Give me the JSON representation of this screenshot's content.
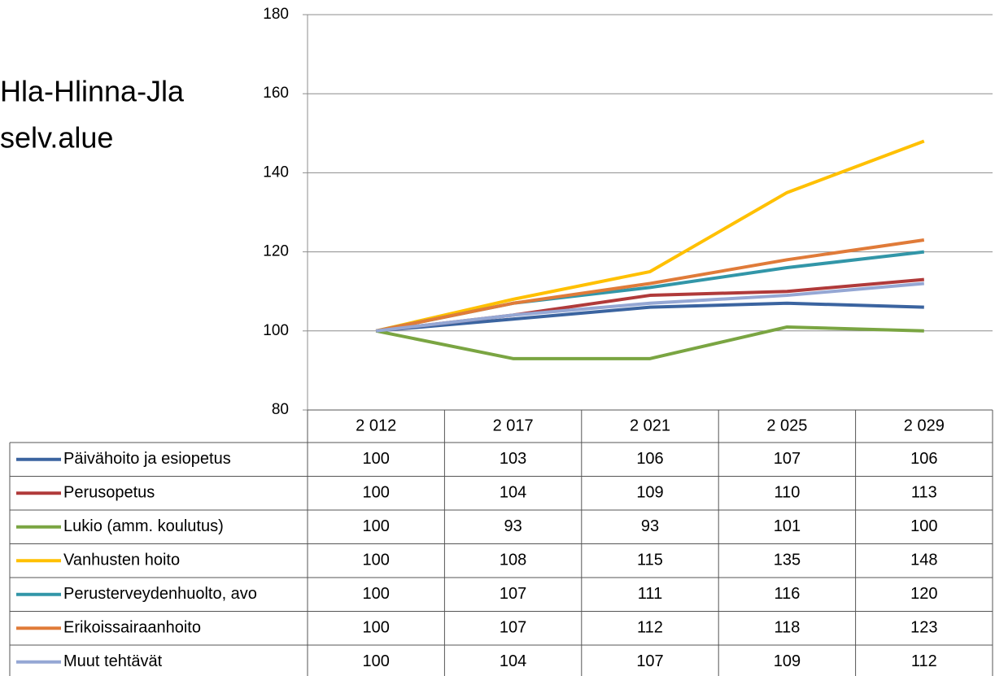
{
  "chart_data": {
    "type": "line",
    "title": [
      "Hla-Hlinna-Jla",
      "selv.alue"
    ],
    "categories": [
      "2 012",
      "2 017",
      "2 021",
      "2 025",
      "2 029"
    ],
    "ylim": [
      80,
      180
    ],
    "yticks": [
      80,
      100,
      120,
      140,
      160,
      180
    ],
    "grid": true,
    "series": [
      {
        "name": "Päivähoito ja esiopetus",
        "color": "#3b64a0",
        "values": [
          100,
          103,
          106,
          107,
          106
        ]
      },
      {
        "name": "Perusopetus",
        "color": "#b03a3a",
        "values": [
          100,
          104,
          109,
          110,
          113
        ]
      },
      {
        "name": "Lukio (amm. koulutus)",
        "color": "#7aa542",
        "values": [
          100,
          93,
          93,
          101,
          100
        ]
      },
      {
        "name": "Vanhusten hoito",
        "color": "#ffc000",
        "values": [
          100,
          108,
          115,
          135,
          148
        ]
      },
      {
        "name": "Perusterveydenhuolto, avo",
        "color": "#3296a8",
        "values": [
          100,
          107,
          111,
          116,
          120
        ]
      },
      {
        "name": "Erikoissairaanhoito",
        "color": "#e07b39",
        "values": [
          100,
          107,
          112,
          118,
          123
        ]
      },
      {
        "name": "Muut tehtävät",
        "color": "#95a7d4",
        "values": [
          100,
          104,
          107,
          109,
          112
        ]
      }
    ]
  }
}
